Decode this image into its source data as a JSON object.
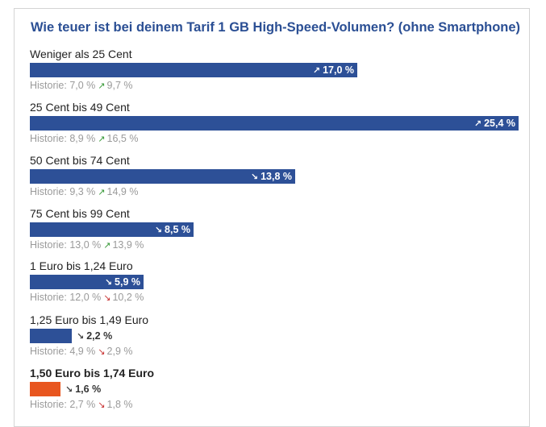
{
  "chart_data": {
    "type": "bar",
    "title": "Wie teuer ist bei deinem Tarif 1 GB High-Speed-Volumen? (ohne Smartphone)",
    "xlim": [
      0,
      25.4
    ],
    "options": [
      {
        "label": "Weniger als 25 Cent",
        "value": 17.0,
        "value_text": "17,0 %",
        "trend": "up",
        "history_label": "Historie:",
        "hist1": "7,0 %",
        "hist_trend": "up",
        "hist2": "9,7 %",
        "highlight": false
      },
      {
        "label": "25 Cent bis 49 Cent",
        "value": 25.4,
        "value_text": "25,4 %",
        "trend": "up",
        "history_label": "Historie:",
        "hist1": "8,9 %",
        "hist_trend": "up",
        "hist2": "16,5 %",
        "highlight": false
      },
      {
        "label": "50 Cent bis 74 Cent",
        "value": 13.8,
        "value_text": "13,8 %",
        "trend": "down",
        "history_label": "Historie:",
        "hist1": "9,3 %",
        "hist_trend": "up",
        "hist2": "14,9 %",
        "highlight": false
      },
      {
        "label": "75 Cent bis 99 Cent",
        "value": 8.5,
        "value_text": "8,5 %",
        "trend": "down",
        "history_label": "Historie:",
        "hist1": "13,0 %",
        "hist_trend": "up",
        "hist2": "13,9 %",
        "highlight": false
      },
      {
        "label": "1 Euro bis 1,24 Euro",
        "value": 5.9,
        "value_text": "5,9 %",
        "trend": "down",
        "history_label": "Historie:",
        "hist1": "12,0 %",
        "hist_trend": "down",
        "hist2": "10,2 %",
        "highlight": false
      },
      {
        "label": "1,25 Euro bis 1,49 Euro",
        "value": 2.2,
        "value_text": "2,2 %",
        "trend": "down",
        "history_label": "Historie:",
        "hist1": "4,9 %",
        "hist_trend": "down",
        "hist2": "2,9 %",
        "highlight": false
      },
      {
        "label": "1,50 Euro bis 1,74 Euro",
        "value": 1.6,
        "value_text": "1,6 %",
        "trend": "down",
        "history_label": "Historie:",
        "hist1": "2,7 %",
        "hist_trend": "down",
        "hist2": "1,8 %",
        "highlight": true
      }
    ]
  },
  "colors": {
    "bar": "#2d5097",
    "highlight_bar": "#e8561f",
    "title": "#2b4f94",
    "history_text": "#9a9a9a",
    "trend_up": "#3a9a3a",
    "trend_down": "#c83232"
  },
  "icons": {
    "trend_up": "trend-up-arrow-icon",
    "trend_down": "trend-down-arrow-icon"
  }
}
